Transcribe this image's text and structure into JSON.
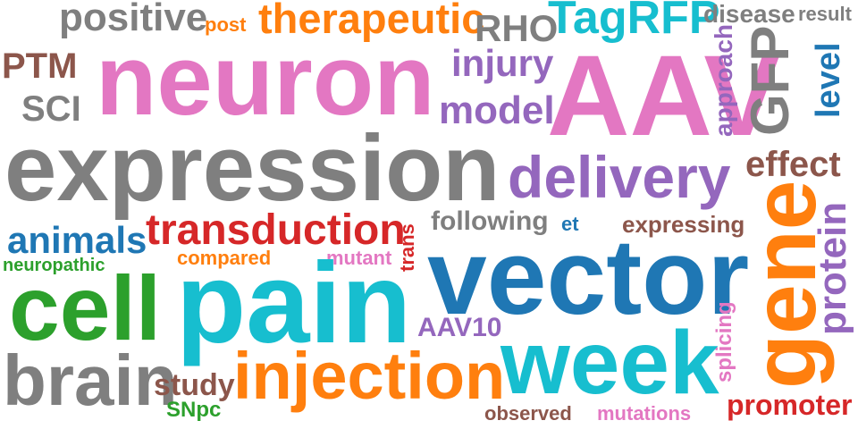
{
  "words": [
    {
      "id": "positive",
      "text": "positive",
      "color": "#7f7f7f"
    },
    {
      "id": "post",
      "text": "post",
      "color": "#ff7f0e"
    },
    {
      "id": "therapeutic",
      "text": "therapeutic",
      "color": "#ff7f0e"
    },
    {
      "id": "rho",
      "text": "RHO",
      "color": "#7f7f7f"
    },
    {
      "id": "tagrfp",
      "text": "TagRFP",
      "color": "#17becf"
    },
    {
      "id": "disease",
      "text": "disease",
      "color": "#7f7f7f"
    },
    {
      "id": "result",
      "text": "result",
      "color": "#7f7f7f"
    },
    {
      "id": "ptm",
      "text": "PTM",
      "color": "#8c564b"
    },
    {
      "id": "neuron",
      "text": "neuron",
      "color": "#e377c2"
    },
    {
      "id": "injury",
      "text": "injury",
      "color": "#9467bd"
    },
    {
      "id": "aav",
      "text": "AAV",
      "color": "#e377c2"
    },
    {
      "id": "approach",
      "text": "approach",
      "color": "#9467bd"
    },
    {
      "id": "gfp",
      "text": "GFP",
      "color": "#7f7f7f"
    },
    {
      "id": "level",
      "text": "level",
      "color": "#1f77b4"
    },
    {
      "id": "sci",
      "text": "SCI",
      "color": "#7f7f7f"
    },
    {
      "id": "model",
      "text": "model",
      "color": "#9467bd"
    },
    {
      "id": "expression",
      "text": "expression",
      "color": "#7f7f7f"
    },
    {
      "id": "effect",
      "text": "effect",
      "color": "#8c564b"
    },
    {
      "id": "delivery",
      "text": "delivery",
      "color": "#9467bd"
    },
    {
      "id": "transduction",
      "text": "transduction",
      "color": "#d62728"
    },
    {
      "id": "following",
      "text": "following",
      "color": "#7f7f7f"
    },
    {
      "id": "et",
      "text": "et",
      "color": "#1f77b4"
    },
    {
      "id": "expressing",
      "text": "expressing",
      "color": "#8c564b"
    },
    {
      "id": "gene",
      "text": "gene",
      "color": "#ff7f0e"
    },
    {
      "id": "protein",
      "text": "protein",
      "color": "#9467bd"
    },
    {
      "id": "animals",
      "text": "animals",
      "color": "#1f77b4"
    },
    {
      "id": "trans",
      "text": "trans",
      "color": "#d62728"
    },
    {
      "id": "neuropathic",
      "text": "neuropathic",
      "color": "#2ca02c"
    },
    {
      "id": "compared",
      "text": "compared",
      "color": "#ff7f0e"
    },
    {
      "id": "mutant",
      "text": "mutant",
      "color": "#e377c2"
    },
    {
      "id": "vector",
      "text": "vector",
      "color": "#1f77b4"
    },
    {
      "id": "cell",
      "text": "cell",
      "color": "#2ca02c"
    },
    {
      "id": "pain",
      "text": "pain",
      "color": "#17becf"
    },
    {
      "id": "aav10",
      "text": "AAV10",
      "color": "#9467bd"
    },
    {
      "id": "splicing",
      "text": "splicing",
      "color": "#e377c2"
    },
    {
      "id": "brain",
      "text": "brain",
      "color": "#7f7f7f"
    },
    {
      "id": "injection",
      "text": "injection",
      "color": "#ff7f0e"
    },
    {
      "id": "week",
      "text": "week",
      "color": "#17becf"
    },
    {
      "id": "study",
      "text": "study",
      "color": "#8c564b"
    },
    {
      "id": "snpc",
      "text": "SNpc",
      "color": "#2ca02c"
    },
    {
      "id": "promoter",
      "text": "promoter",
      "color": "#d62728"
    },
    {
      "id": "observed",
      "text": "observed",
      "color": "#8c564b"
    },
    {
      "id": "mutations",
      "text": "mutations",
      "color": "#e377c2"
    }
  ]
}
